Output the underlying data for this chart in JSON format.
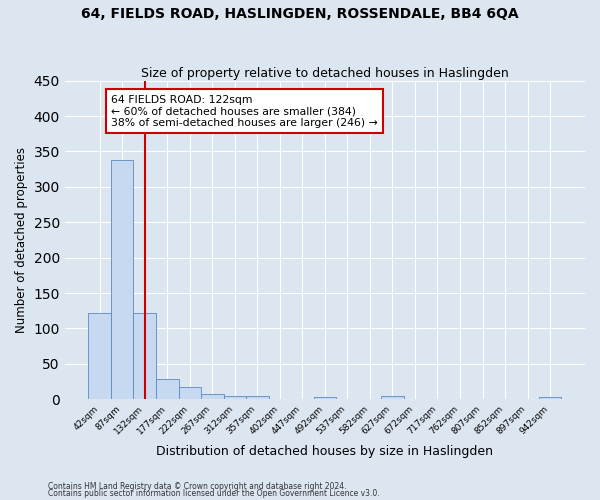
{
  "title": "64, FIELDS ROAD, HASLINGDEN, ROSSENDALE, BB4 6QA",
  "subtitle": "Size of property relative to detached houses in Haslingden",
  "xlabel": "Distribution of detached houses by size in Haslingden",
  "ylabel": "Number of detached properties",
  "bin_labels": [
    "42sqm",
    "87sqm",
    "132sqm",
    "177sqm",
    "222sqm",
    "267sqm",
    "312sqm",
    "357sqm",
    "402sqm",
    "447sqm",
    "492sqm",
    "537sqm",
    "582sqm",
    "627sqm",
    "672sqm",
    "717sqm",
    "762sqm",
    "807sqm",
    "852sqm",
    "897sqm",
    "942sqm"
  ],
  "bar_values": [
    122,
    338,
    122,
    29,
    17,
    8,
    4,
    4,
    0,
    0,
    3,
    0,
    0,
    4,
    0,
    0,
    0,
    0,
    0,
    0,
    3
  ],
  "bar_color": "#c6d9f0",
  "bar_edge_color": "#5a8abf",
  "vline_x": 2,
  "vline_color": "#cc0000",
  "annotation_title": "64 FIELDS ROAD: 122sqm",
  "annotation_line1": "← 60% of detached houses are smaller (384)",
  "annotation_line2": "38% of semi-detached houses are larger (246) →",
  "annotation_box_color": "#cc0000",
  "ylim": [
    0,
    450
  ],
  "yticks": [
    0,
    50,
    100,
    150,
    200,
    250,
    300,
    350,
    400,
    450
  ],
  "footnote1": "Contains HM Land Registry data © Crown copyright and database right 2024.",
  "footnote2": "Contains public sector information licensed under the Open Government Licence v3.0.",
  "background_color": "#dce6f1",
  "plot_bg_color": "#dce6f1"
}
